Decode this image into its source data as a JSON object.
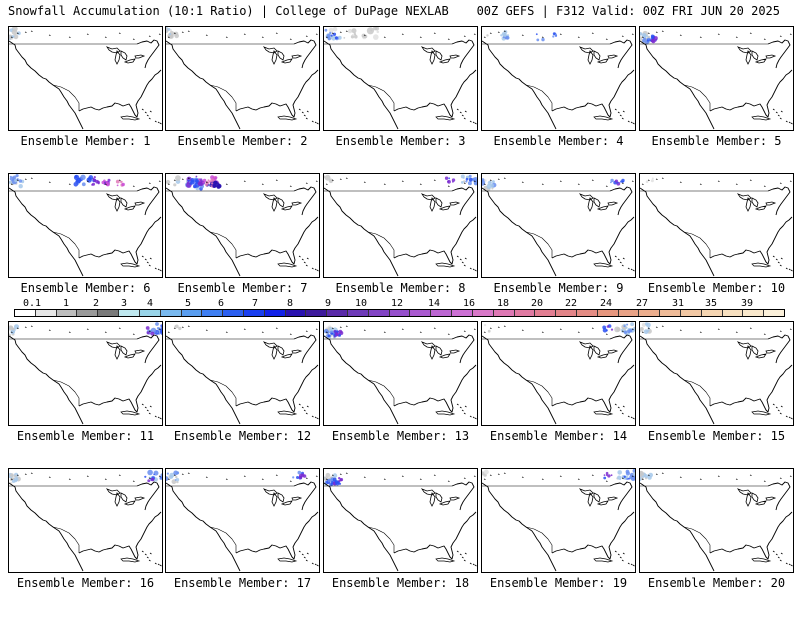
{
  "header": {
    "title": "Snowfall Accumulation (10:1 Ratio) | College of DuPage NEXLAB",
    "run_info": "00Z GEFS | F312 Valid: 00Z FRI JUN 20 2025"
  },
  "panels": [
    {
      "label": "Ensemble Member: 1",
      "snow": "light-nw"
    },
    {
      "label": "Ensemble Member: 2",
      "snow": "light-nw"
    },
    {
      "label": "Ensemble Member: 3",
      "snow": "nw-and-west"
    },
    {
      "label": "Ensemble Member: 4",
      "snow": "scattered-west"
    },
    {
      "label": "Ensemble Member: 5",
      "snow": "heavy-nw"
    },
    {
      "label": "Ensemble Member: 6",
      "snow": "canada"
    },
    {
      "label": "Ensemble Member: 7",
      "snow": "rockies-and-canada"
    },
    {
      "label": "Ensemble Member: 8",
      "snow": "northeast-canada"
    },
    {
      "label": "Ensemble Member: 9",
      "snow": "nw-and-canada"
    },
    {
      "label": "Ensemble Member: 10",
      "snow": "minimal"
    },
    {
      "label": "Ensemble Member: 11",
      "snow": "nw-and-northeast"
    },
    {
      "label": "Ensemble Member: 12",
      "snow": "minimal"
    },
    {
      "label": "Ensemble Member: 13",
      "snow": "heavy-nw"
    },
    {
      "label": "Ensemble Member: 14",
      "snow": "northeast-canada"
    },
    {
      "label": "Ensemble Member: 15",
      "snow": "light-nw"
    },
    {
      "label": "Ensemble Member: 16",
      "snow": "nw-and-northeast"
    },
    {
      "label": "Ensemble Member: 17",
      "snow": "nw-and-canada"
    },
    {
      "label": "Ensemble Member: 18",
      "snow": "heavy-nw"
    },
    {
      "label": "Ensemble Member: 19",
      "snow": "northeast-canada"
    },
    {
      "label": "Ensemble Member: 20",
      "snow": "light-nw"
    }
  ],
  "colorbar": {
    "tick_labels": [
      "0.1",
      "1",
      "2",
      "3",
      "4",
      "5",
      "6",
      "7",
      "8",
      "9",
      "10",
      "12",
      "14",
      "16",
      "18",
      "20",
      "22",
      "24",
      "27",
      "31",
      "35",
      "39"
    ],
    "colors": [
      "#ffffff",
      "#e6e6e6",
      "#bdbdbd",
      "#9a9a9a",
      "#7a7a7a",
      "#bfe8ef",
      "#98d4e8",
      "#79b9ef",
      "#5a9ef0",
      "#3f7ff2",
      "#2b5ff0",
      "#1a3ff0",
      "#1222e8",
      "#2a12b0",
      "#3e1a9c",
      "#5a2aa8",
      "#6e3ab8",
      "#8244c4",
      "#9650cc",
      "#aa5ad0",
      "#bc66d2",
      "#cc70d4",
      "#d878c8",
      "#de78b4",
      "#e07aa2",
      "#e27e92",
      "#e28488",
      "#e48c84",
      "#e6967e",
      "#e8a286",
      "#ecae8e",
      "#efbb98",
      "#f2c8a4",
      "#f5d5b2",
      "#f7e0c0",
      "#f9e8cc",
      "#fbf0da"
    ]
  }
}
